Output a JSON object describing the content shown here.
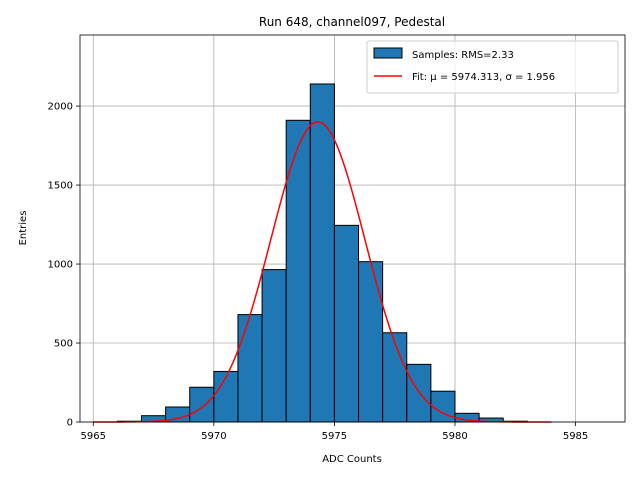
{
  "chart_data": {
    "type": "bar",
    "title": "Run 648, channel097, Pedestal",
    "xlabel": "ADC Counts",
    "ylabel": "Entries",
    "xlim": [
      5964.45,
      5987.05
    ],
    "ylim": [
      0,
      2450
    ],
    "xticks": [
      5965,
      5970,
      5975,
      5980,
      5985
    ],
    "yticks": [
      0,
      500,
      1000,
      1500,
      2000
    ],
    "grid": true,
    "legend_position": "top-right",
    "bar_color": "#1f77b4",
    "bar_edge_color": "#000000",
    "fit_color": "#ff0000",
    "histogram": {
      "name": "Samples: RMS=2.33",
      "bin_edges": [
        5966,
        5967,
        5968,
        5969,
        5970,
        5971,
        5972,
        5973,
        5974,
        5975,
        5976,
        5977,
        5978,
        5979,
        5980,
        5981,
        5982,
        5983
      ],
      "counts": [
        5,
        40,
        95,
        220,
        320,
        680,
        965,
        1910,
        2140,
        1245,
        1015,
        565,
        365,
        195,
        55,
        25,
        5
      ]
    },
    "fit": {
      "name": "Fit: μ = 5974.313, σ = 1.956",
      "mu": 5974.313,
      "sigma": 1.956,
      "amplitude": 1900,
      "x_range": [
        5965,
        5984
      ]
    }
  }
}
